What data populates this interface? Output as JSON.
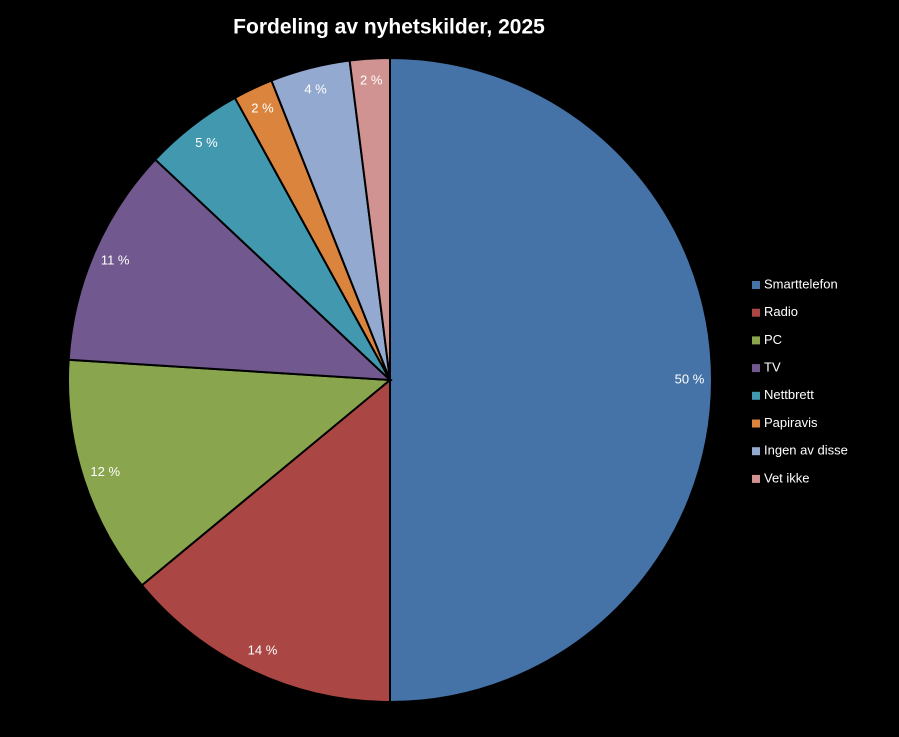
{
  "chart_data": {
    "type": "pie",
    "title": "Fordeling av nyhetskilder, 2025",
    "categories": [
      "Smarttelefon",
      "Radio",
      "PC",
      "TV",
      "Nettbrett",
      "Papiravis",
      "Ingen av disse",
      "Vet ikke"
    ],
    "values": [
      50,
      14,
      12,
      11,
      5,
      2,
      4,
      2
    ],
    "value_labels": [
      "50 %",
      "14 %",
      "12 %",
      "11 %",
      "5 %",
      "2 %",
      "4 %",
      "2 %"
    ],
    "colors": [
      "#4572a7",
      "#aa4643",
      "#89a54e",
      "#71588f",
      "#4198af",
      "#db843d",
      "#93a9cf",
      "#d19392"
    ],
    "legend": "right"
  }
}
